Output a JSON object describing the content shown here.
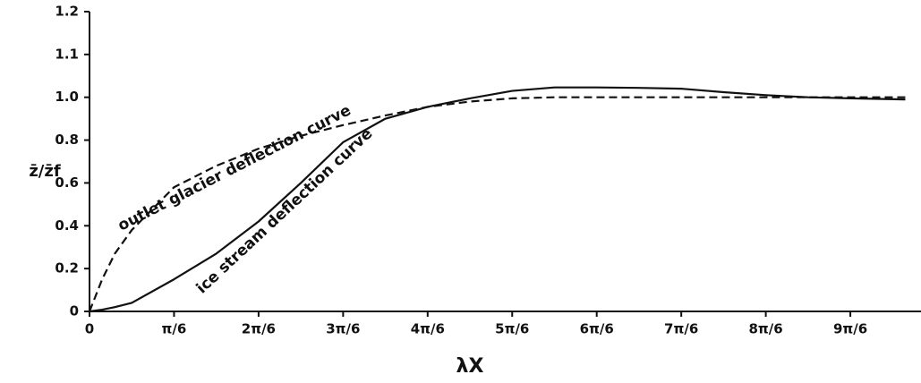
{
  "chart_data": {
    "type": "line",
    "ylabel": "z̄/z̄f",
    "xlabel": "λX",
    "annotations": [
      "outlet glacier deflection curve",
      "ice stream deflection curve"
    ],
    "x": [
      0,
      0.0785,
      0.1571,
      0.2618,
      0.5236,
      0.7854,
      1.0472,
      1.309,
      1.5708,
      1.8326,
      2.0944,
      2.3562,
      2.618,
      2.8798,
      3.1416,
      3.4034,
      3.6652,
      3.927,
      4.1888,
      4.4506,
      4.7124,
      5.0527
    ],
    "series": [
      {
        "name": "ice stream deflection curve",
        "color": "#111111",
        "dash": false,
        "values": [
          0,
          0.008,
          0.02,
          0.04,
          0.15,
          0.27,
          0.42,
          0.6,
          0.79,
          0.9,
          0.955,
          0.995,
          1.015,
          1.023,
          1.023,
          1.022,
          1.02,
          1.012,
          1.005,
          1.0,
          0.995,
          0.99
        ]
      },
      {
        "name": "outlet glacier deflection curve",
        "color": "#111111",
        "dash": true,
        "values": [
          0,
          0.15,
          0.27,
          0.38,
          0.58,
          0.68,
          0.76,
          0.82,
          0.87,
          0.915,
          0.955,
          0.98,
          0.995,
          1.0,
          1.0,
          1.0,
          1.0,
          1.0,
          1.0,
          1.0,
          1.0,
          1.0
        ]
      }
    ],
    "xlim": [
      0,
      5.15
    ],
    "xticks": [
      0,
      {
        "value": 0.5236,
        "label": "π/6"
      },
      {
        "value": 1.0472,
        "label": "2π/6"
      },
      {
        "value": 1.5708,
        "label": "3π/6"
      },
      {
        "value": 2.0944,
        "label": "4π/6"
      },
      {
        "value": 2.618,
        "label": "5π/6"
      },
      {
        "value": 3.1416,
        "label": "6π/6"
      },
      {
        "value": 3.6652,
        "label": "7π/6"
      },
      {
        "value": 4.1888,
        "label": "8π/6"
      },
      {
        "value": 4.7124,
        "label": "9π/6"
      }
    ],
    "ylim": [
      0,
      1.2
    ],
    "yticks": [
      0,
      0.2,
      0.4,
      0.6,
      0.8,
      {
        "value": 1.0,
        "label": "1.0"
      },
      1.1,
      1.2
    ],
    "grid": false
  }
}
